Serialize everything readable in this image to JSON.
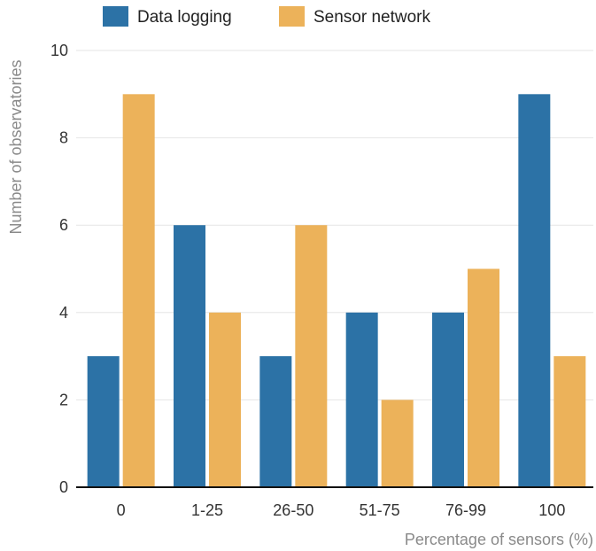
{
  "chart_data": {
    "type": "bar",
    "categories": [
      "0",
      "1-25",
      "26-50",
      "51-75",
      "76-99",
      "100"
    ],
    "series": [
      {
        "name": "Data logging",
        "color": "#2c72a6",
        "values": [
          3,
          6,
          3,
          4,
          4,
          9
        ]
      },
      {
        "name": "Sensor network",
        "color": "#ecb25a",
        "values": [
          9,
          4,
          6,
          2,
          5,
          3
        ]
      }
    ],
    "xlabel": "Percentage of sensors (%)",
    "ylabel": "Number of observatories",
    "ylim": [
      0,
      10
    ],
    "yticks": [
      0,
      2,
      4,
      6,
      8,
      10
    ],
    "grid": true,
    "legend": "top-left"
  }
}
